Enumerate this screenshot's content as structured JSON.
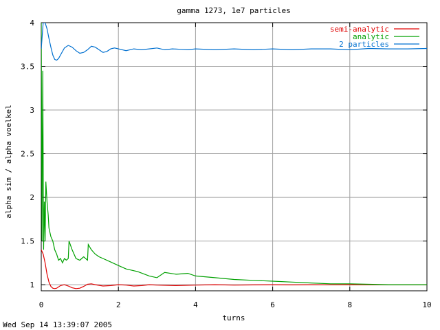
{
  "chart_data": {
    "type": "line",
    "title": "gamma 1273, 1e7 particles",
    "xlabel": "turns",
    "ylabel": "alpha sim / alpha voelkel",
    "xlim": [
      0,
      10
    ],
    "ylim": [
      0.93,
      4.0
    ],
    "xticks": [
      0,
      2,
      4,
      6,
      8,
      10
    ],
    "yticks": [
      1,
      1.5,
      2,
      2.5,
      3,
      3.5,
      4
    ],
    "ytick_labels": [
      "1",
      "1.5",
      "2",
      "2.5",
      "3",
      "3.5",
      "4"
    ],
    "grid": true,
    "legend_position": "top-right",
    "footer": "Wed Sep 14 13:39:07 2005",
    "series": [
      {
        "name": "semi-analytic",
        "color": "#e00000",
        "x": [
          0,
          0.05,
          0.1,
          0.15,
          0.2,
          0.25,
          0.3,
          0.35,
          0.4,
          0.5,
          0.6,
          0.7,
          0.8,
          0.9,
          1.0,
          1.1,
          1.2,
          1.3,
          1.4,
          1.6,
          1.8,
          2.0,
          2.2,
          2.4,
          2.6,
          2.8,
          3.0,
          3.5,
          4.0,
          4.5,
          5.0,
          5.5,
          6.0,
          6.5,
          7.0,
          7.5,
          8.0,
          8.5,
          9.0,
          9.5,
          10.0
        ],
        "y": [
          1.4,
          1.35,
          1.25,
          1.12,
          1.03,
          0.98,
          0.96,
          0.955,
          0.96,
          0.99,
          1.0,
          0.985,
          0.965,
          0.955,
          0.96,
          0.98,
          1.005,
          1.01,
          1.0,
          0.985,
          0.99,
          1.0,
          0.995,
          0.985,
          0.99,
          1.0,
          0.995,
          0.99,
          0.995,
          1.0,
          0.995,
          0.998,
          1.0,
          0.998,
          1.0,
          0.999,
          1.0,
          0.999,
          1.0,
          0.999,
          1.0
        ]
      },
      {
        "name": "analytic",
        "color": "#00a000",
        "x": [
          0,
          0.02,
          0.04,
          0.06,
          0.08,
          0.1,
          0.12,
          0.15,
          0.18,
          0.2,
          0.25,
          0.3,
          0.35,
          0.4,
          0.45,
          0.5,
          0.55,
          0.6,
          0.65,
          0.7,
          0.72,
          0.8,
          0.9,
          1.0,
          1.05,
          1.1,
          1.2,
          1.22,
          1.3,
          1.4,
          1.5,
          1.6,
          1.8,
          2.0,
          2.2,
          2.5,
          2.8,
          3.0,
          3.2,
          3.5,
          3.8,
          4.0,
          4.5,
          5.0,
          5.5,
          6.0,
          6.5,
          7.0,
          7.5,
          8.0,
          8.5,
          9.0,
          9.5,
          10.0
        ],
        "y": [
          4.0,
          1.5,
          3.45,
          1.4,
          1.95,
          1.5,
          2.18,
          1.95,
          1.8,
          1.65,
          1.55,
          1.5,
          1.4,
          1.35,
          1.28,
          1.3,
          1.25,
          1.3,
          1.28,
          1.3,
          1.5,
          1.4,
          1.3,
          1.28,
          1.3,
          1.32,
          1.28,
          1.46,
          1.4,
          1.35,
          1.32,
          1.3,
          1.26,
          1.22,
          1.18,
          1.15,
          1.1,
          1.08,
          1.14,
          1.12,
          1.13,
          1.1,
          1.08,
          1.06,
          1.05,
          1.04,
          1.03,
          1.02,
          1.01,
          1.01,
          1.005,
          1.0,
          1.0,
          1.0
        ]
      },
      {
        "name": "2 particles",
        "color": "#0070d0",
        "x": [
          0,
          0.05,
          0.1,
          0.15,
          0.2,
          0.25,
          0.3,
          0.35,
          0.4,
          0.45,
          0.5,
          0.6,
          0.7,
          0.8,
          0.9,
          1.0,
          1.1,
          1.2,
          1.3,
          1.4,
          1.5,
          1.6,
          1.7,
          1.8,
          1.9,
          2.0,
          2.2,
          2.4,
          2.6,
          2.8,
          3.0,
          3.2,
          3.4,
          3.6,
          3.8,
          4.0,
          4.5,
          5.0,
          5.5,
          6.0,
          6.5,
          7.0,
          7.5,
          8.0,
          8.5,
          9.0,
          9.5,
          10.0
        ],
        "y": [
          3.7,
          4.0,
          4.0,
          3.93,
          3.82,
          3.72,
          3.63,
          3.58,
          3.57,
          3.59,
          3.63,
          3.71,
          3.74,
          3.72,
          3.68,
          3.65,
          3.66,
          3.69,
          3.73,
          3.72,
          3.69,
          3.66,
          3.67,
          3.7,
          3.71,
          3.7,
          3.68,
          3.7,
          3.69,
          3.7,
          3.71,
          3.69,
          3.7,
          3.695,
          3.69,
          3.7,
          3.69,
          3.7,
          3.69,
          3.7,
          3.69,
          3.7,
          3.7,
          3.69,
          3.705,
          3.7,
          3.7,
          3.705
        ]
      }
    ]
  }
}
